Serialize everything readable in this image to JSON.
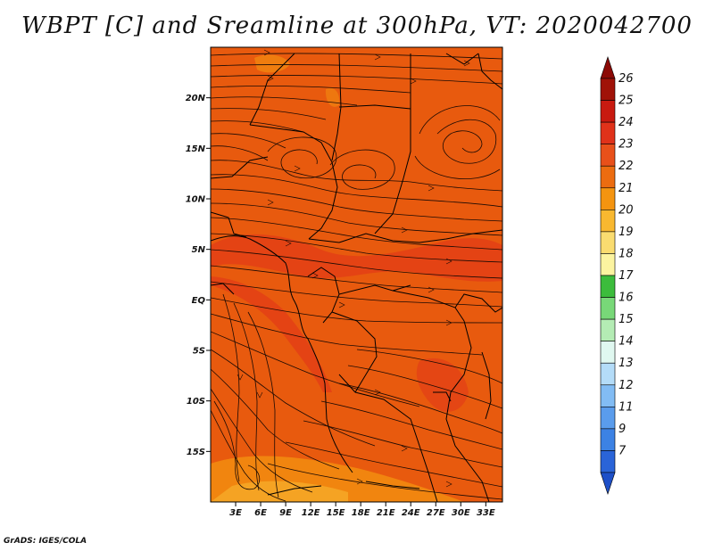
{
  "title": "WBPT [C] and Sreamline at 300hPa, VT: 2020042700",
  "footer": "GrADS: IGES/COLA",
  "map": {
    "lon_range": [
      0,
      35
    ],
    "lat_range": [
      -20,
      25
    ],
    "lat_ticks": [
      {
        "value": 20,
        "label": "20N"
      },
      {
        "value": 15,
        "label": "15N"
      },
      {
        "value": 10,
        "label": "10N"
      },
      {
        "value": 5,
        "label": "5N"
      },
      {
        "value": 0,
        "label": "EQ"
      },
      {
        "value": -5,
        "label": "5S"
      },
      {
        "value": -10,
        "label": "10S"
      },
      {
        "value": -15,
        "label": "15S"
      }
    ],
    "lon_ticks": [
      {
        "value": 3,
        "label": "3E"
      },
      {
        "value": 6,
        "label": "6E"
      },
      {
        "value": 9,
        "label": "9E"
      },
      {
        "value": 12,
        "label": "12E"
      },
      {
        "value": 15,
        "label": "15E"
      },
      {
        "value": 18,
        "label": "18E"
      },
      {
        "value": 21,
        "label": "21E"
      },
      {
        "value": 24,
        "label": "24E"
      },
      {
        "value": 27,
        "label": "27E"
      },
      {
        "value": 30,
        "label": "30E"
      },
      {
        "value": 33,
        "label": "33E"
      }
    ],
    "background_color": "#e85a0e"
  },
  "colorbar": {
    "levels": [
      {
        "label": "26",
        "color": "#a01208"
      },
      {
        "label": "25",
        "color": "#c81a10"
      },
      {
        "label": "24",
        "color": "#e0321a"
      },
      {
        "label": "23",
        "color": "#e8501a"
      },
      {
        "label": "22",
        "color": "#ec6c10"
      },
      {
        "label": "21",
        "color": "#f49410"
      },
      {
        "label": "20",
        "color": "#f8b830"
      },
      {
        "label": "19",
        "color": "#fadc70"
      },
      {
        "label": "18",
        "color": "#fcf4a0"
      },
      {
        "label": "17",
        "color": "#3cbc3c"
      },
      {
        "label": "16",
        "color": "#78d878"
      },
      {
        "label": "15",
        "color": "#b4ecb4"
      },
      {
        "label": "14",
        "color": "#e0f8f0"
      },
      {
        "label": "13",
        "color": "#b4dcf8"
      },
      {
        "label": "12",
        "color": "#82bcf4"
      },
      {
        "label": "11",
        "color": "#5a9cec"
      },
      {
        "label": "9",
        "color": "#3c82e4"
      },
      {
        "label": "7",
        "color": "#2a64d8"
      }
    ],
    "top_arrow_color": "#8c0a06",
    "bottom_arrow_color": "#1e50c8"
  }
}
